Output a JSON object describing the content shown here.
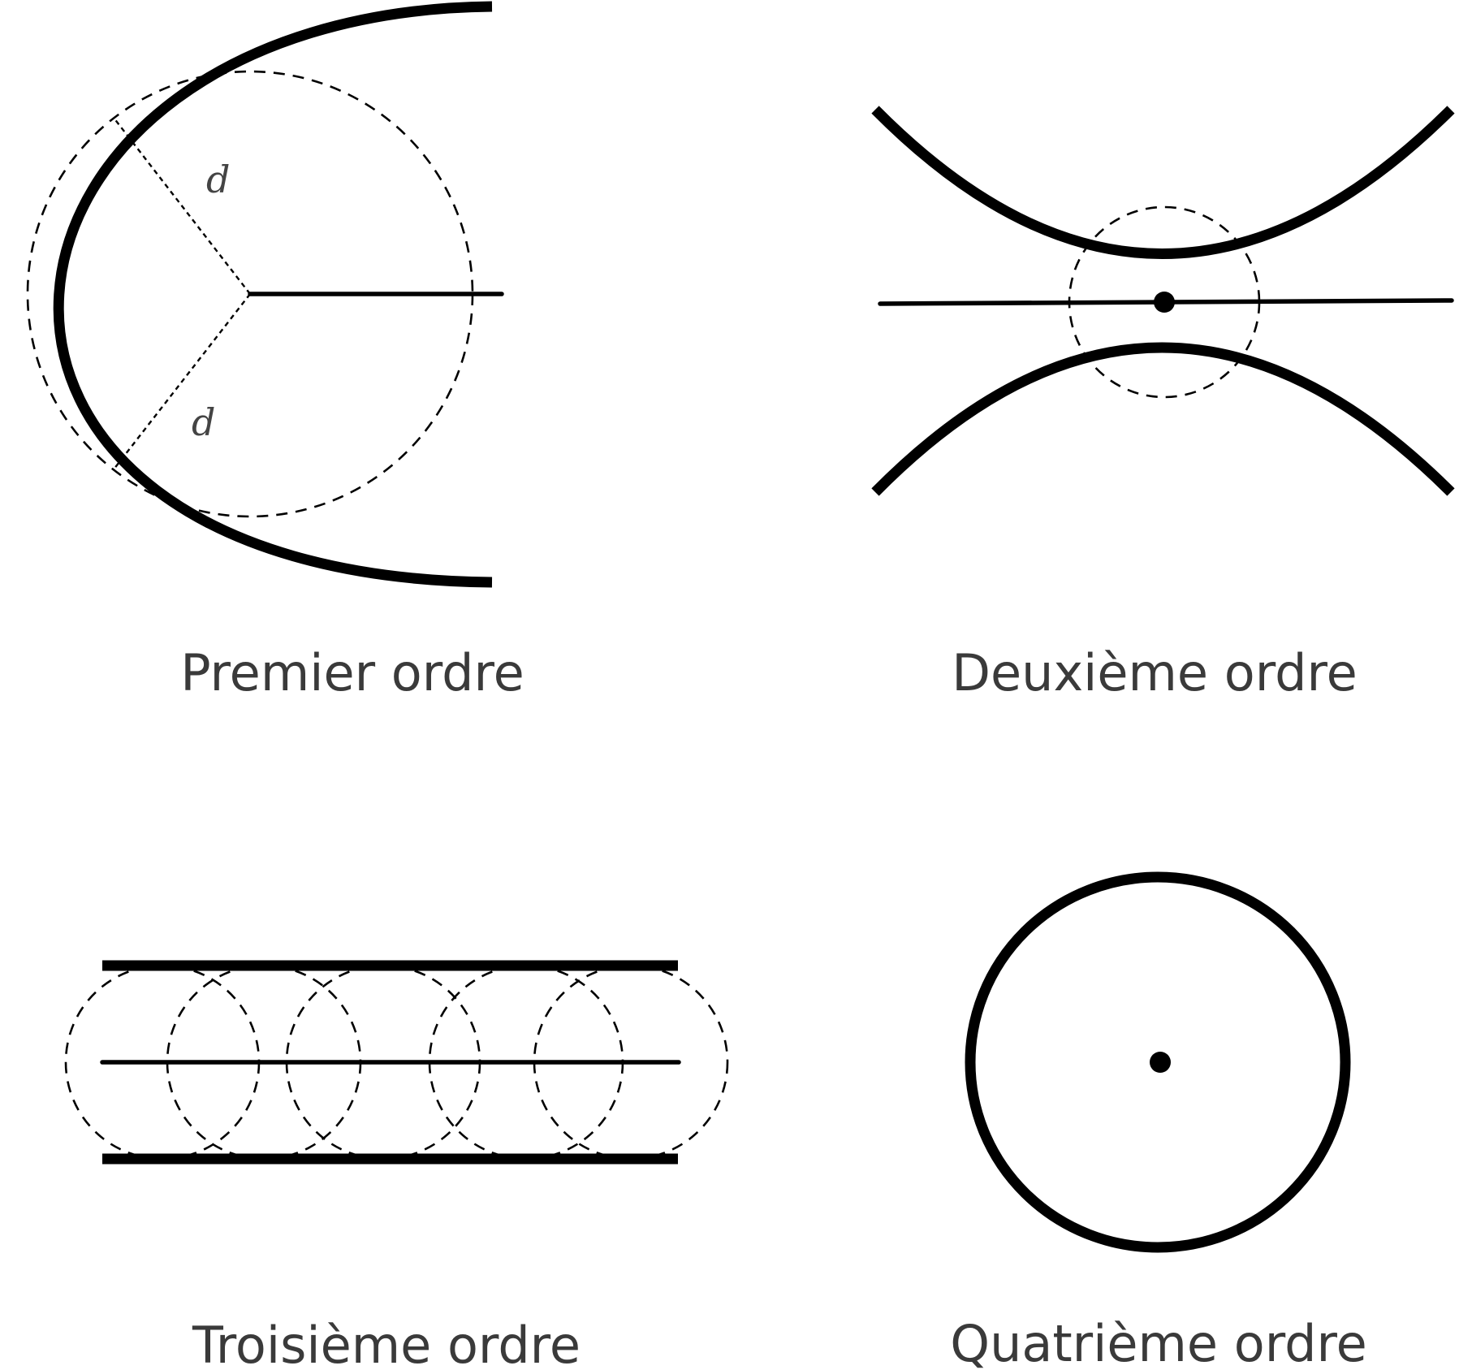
{
  "figure": {
    "panels": [
      {
        "id": "first",
        "caption": "Premier ordre",
        "distance_labels": [
          "d",
          "d"
        ]
      },
      {
        "id": "second",
        "caption": "Deuxième ordre"
      },
      {
        "id": "third",
        "caption": "Troisième ordre"
      },
      {
        "id": "fourth",
        "caption": "Quatrième ordre"
      }
    ]
  },
  "colors": {
    "stroke": "#000000",
    "caption": "#3a3a3a",
    "background": "#ffffff"
  }
}
